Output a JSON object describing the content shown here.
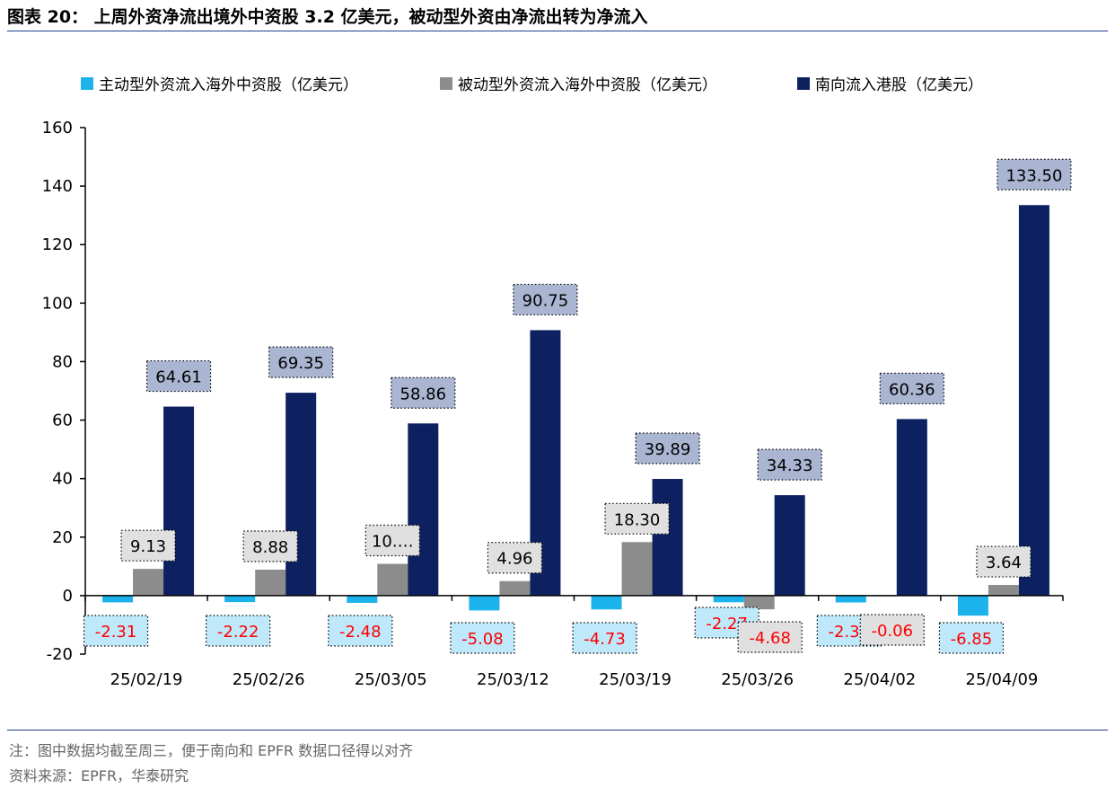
{
  "figure": {
    "title": "图表 20：  上周外资净流出境外中资股 3.2 亿美元，被动型外资由净流出转为净流入",
    "note": "注：图中数据均截至周三，便于南向和 EPFR 数据口径得以对齐",
    "source": "资料来源：EPFR，华泰研究"
  },
  "chart_data": {
    "type": "bar",
    "categories": [
      "25/02/19",
      "25/02/26",
      "25/03/05",
      "25/03/12",
      "25/03/19",
      "25/03/26",
      "25/04/02",
      "25/04/09"
    ],
    "series": [
      {
        "name": "主动型外资流入海外中资股（亿美元）",
        "color": "#1cb3ec",
        "label_bg": "#bfe9fb",
        "values": [
          -2.31,
          -2.22,
          -2.48,
          -5.08,
          -4.73,
          -2.27,
          -2.33,
          -6.85
        ],
        "labels": [
          "-2.31",
          "-2.22",
          "-2.48",
          "-5.08",
          "-4.73",
          "-2.27",
          "-2.33",
          "-6.85"
        ]
      },
      {
        "name": "被动型外资流入海外中资股（亿美元）",
        "color": "#8c8c8c",
        "label_bg": "#e0e0e0",
        "values": [
          9.13,
          8.88,
          10.86,
          4.96,
          18.3,
          -4.68,
          -0.06,
          3.64
        ],
        "labels": [
          "9.13",
          "8.88",
          "10.…",
          "4.96",
          "18.30",
          "-4.68",
          "-0.06",
          "3.64"
        ]
      },
      {
        "name": "南向流入港股（亿美元）",
        "color": "#0d2161",
        "label_bg": "#aab5d2",
        "values": [
          64.61,
          69.35,
          58.86,
          90.75,
          39.89,
          34.33,
          60.36,
          133.5
        ],
        "labels": [
          "64.61",
          "69.35",
          "58.86",
          "90.75",
          "39.89",
          "34.33",
          "60.36",
          "133.50"
        ]
      }
    ],
    "y_ticks": [
      "160",
      "140",
      "120",
      "100",
      "80",
      "60",
      "40",
      "20",
      "0",
      "-20"
    ],
    "ylim": [
      -20,
      160
    ],
    "grid": false,
    "legend_position": "top",
    "negative_label_color": "#ff0000"
  }
}
